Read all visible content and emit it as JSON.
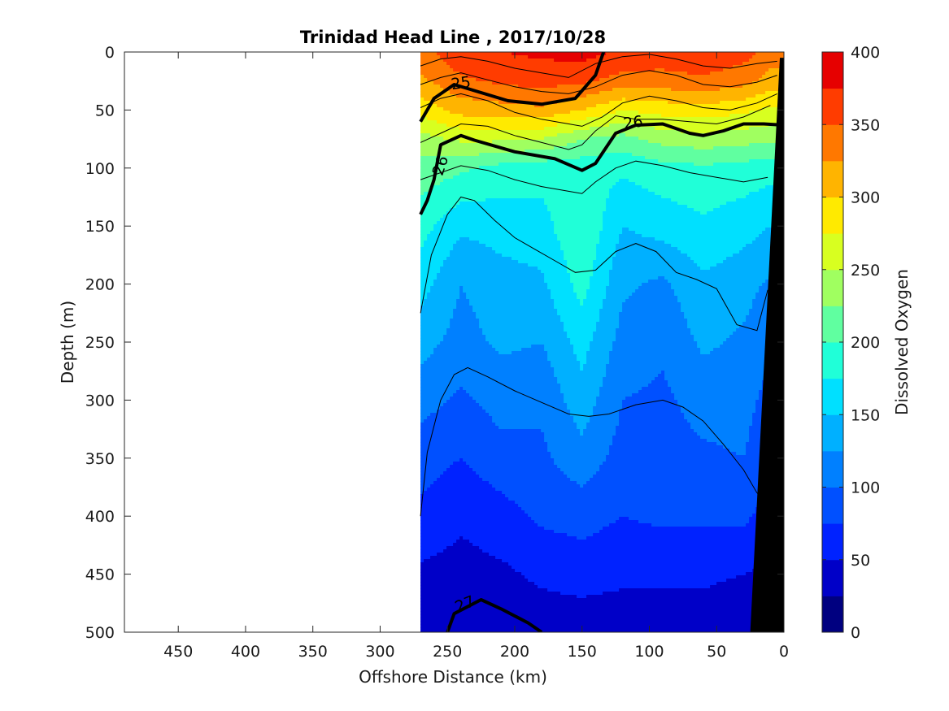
{
  "chart_data": {
    "type": "heatmap",
    "title": "Trinidad Head Line , 2017/10/28",
    "xlabel": "Offshore Distance (km)",
    "ylabel": "Depth (m)",
    "xlim": [
      490,
      0
    ],
    "ylim": [
      500,
      0
    ],
    "x_reversed": true,
    "y_reversed": true,
    "x_ticks": [
      450,
      400,
      350,
      300,
      250,
      200,
      150,
      100,
      50,
      0
    ],
    "y_ticks": [
      0,
      50,
      100,
      150,
      200,
      250,
      300,
      350,
      400,
      450,
      500
    ],
    "colorbar": {
      "label": "Dissolved Oxygen",
      "range": [
        0,
        400
      ],
      "ticks": [
        0,
        50,
        100,
        150,
        200,
        250,
        300,
        350,
        400
      ],
      "levels": [
        0,
        25,
        50,
        75,
        100,
        125,
        150,
        175,
        200,
        225,
        250,
        275,
        300,
        325,
        350,
        375,
        400
      ],
      "colormap": "jet",
      "colors": [
        "#000080",
        "#0000c8",
        "#0022ff",
        "#0050ff",
        "#0080ff",
        "#00b0ff",
        "#00e0ff",
        "#20ffd8",
        "#60ffa0",
        "#a0ff60",
        "#d8ff20",
        "#ffea00",
        "#ffb400",
        "#ff7800",
        "#ff3c00",
        "#e60000",
        "#a80000"
      ]
    },
    "data_extent_x": [
      270,
      0
    ],
    "oxygen_field": {
      "x_km": [
        270,
        240,
        210,
        180,
        150,
        120,
        90,
        60,
        30,
        10
      ],
      "depth_m": [
        0,
        25,
        50,
        75,
        100,
        150,
        200,
        250,
        300,
        350,
        400,
        450,
        500
      ],
      "values": [
        [
          340,
          370,
          375,
          380,
          385,
          370,
          365,
          370,
          360,
          340
        ],
        [
          320,
          345,
          355,
          360,
          355,
          340,
          340,
          345,
          335,
          315
        ],
        [
          285,
          310,
          315,
          320,
          300,
          275,
          285,
          290,
          280,
          270
        ],
        [
          240,
          255,
          255,
          250,
          225,
          215,
          235,
          240,
          235,
          230
        ],
        [
          215,
          205,
          190,
          185,
          185,
          180,
          190,
          195,
          190,
          185
        ],
        [
          185,
          155,
          160,
          165,
          200,
          150,
          160,
          170,
          160,
          150
        ],
        [
          160,
          125,
          140,
          145,
          185,
          130,
          120,
          145,
          135,
          120
        ],
        [
          135,
          115,
          130,
          125,
          160,
          115,
          105,
          130,
          120,
          105
        ],
        [
          110,
          95,
          110,
          105,
          140,
          100,
          95,
          110,
          110,
          90
        ],
        [
          85,
          75,
          90,
          95,
          115,
          90,
          90,
          95,
          100,
          80
        ],
        [
          70,
          55,
          65,
          80,
          85,
          75,
          80,
          80,
          80,
          65
        ],
        [
          45,
          40,
          45,
          55,
          60,
          55,
          55,
          55,
          50,
          45
        ],
        [
          25,
          25,
          30,
          35,
          35,
          35,
          35,
          35,
          30,
          25
        ]
      ]
    },
    "bathymetry": {
      "x_km": [
        3,
        0,
        0,
        25
      ],
      "depth_m": [
        5,
        5,
        500,
        500
      ]
    },
    "isopycnals": [
      {
        "sigma_theta": "25",
        "x_km": [
          270,
          260,
          245,
          225,
          205,
          180,
          155,
          140,
          134
        ],
        "depth_m": [
          60,
          40,
          28,
          35,
          42,
          45,
          40,
          20,
          0
        ]
      },
      {
        "sigma_theta": "26",
        "x_km": [
          270,
          265,
          260,
          255,
          240,
          230,
          200,
          170,
          150,
          140,
          125,
          110,
          90,
          70,
          60,
          45,
          30,
          15,
          0
        ],
        "depth_m": [
          140,
          128,
          110,
          80,
          72,
          76,
          86,
          92,
          102,
          96,
          70,
          63,
          62,
          70,
          72,
          68,
          62,
          62,
          63
        ]
      },
      {
        "sigma_theta": "27",
        "x_km": [
          250,
          245,
          225,
          210,
          190,
          180
        ],
        "depth_m": [
          500,
          484,
          472,
          480,
          492,
          500
        ]
      }
    ],
    "contour_labels": [
      {
        "text": "25",
        "x_km": 240,
        "depth_m": 27
      },
      {
        "text": "26",
        "x_km": 112,
        "depth_m": 61
      },
      {
        "text": "26",
        "x_km": 255,
        "depth_m": 98
      },
      {
        "text": "27",
        "x_km": 237,
        "depth_m": 476
      }
    ],
    "thin_contours": [
      {
        "x_km": [
          270,
          255,
          240,
          220,
          200,
          180,
          160,
          140,
          120,
          100,
          80,
          60,
          40,
          20,
          5
        ],
        "depth_m": [
          12,
          6,
          4,
          8,
          14,
          18,
          22,
          10,
          4,
          2,
          6,
          12,
          14,
          10,
          8
        ]
      },
      {
        "x_km": [
          270,
          255,
          240,
          220,
          200,
          180,
          160,
          140,
          120,
          100,
          80,
          60,
          40,
          20,
          5
        ],
        "depth_m": [
          28,
          22,
          18,
          24,
          30,
          34,
          36,
          30,
          20,
          16,
          20,
          28,
          30,
          26,
          20
        ]
      },
      {
        "x_km": [
          270,
          255,
          240,
          220,
          200,
          180,
          160,
          150,
          135,
          120,
          100,
          80,
          60,
          40,
          20,
          5
        ],
        "depth_m": [
          48,
          40,
          36,
          42,
          52,
          58,
          62,
          64,
          56,
          44,
          38,
          42,
          48,
          50,
          44,
          36
        ]
      },
      {
        "x_km": [
          270,
          255,
          240,
          220,
          200,
          180,
          160,
          150,
          140,
          125,
          110,
          90,
          70,
          50,
          30,
          10
        ],
        "depth_m": [
          78,
          70,
          62,
          64,
          72,
          78,
          84,
          80,
          68,
          55,
          58,
          58,
          60,
          62,
          56,
          46
        ]
      },
      {
        "x_km": [
          270,
          255,
          240,
          220,
          200,
          180,
          160,
          150,
          140,
          125,
          110,
          90,
          70,
          50,
          30,
          12
        ],
        "depth_m": [
          110,
          104,
          98,
          102,
          110,
          116,
          120,
          122,
          112,
          100,
          94,
          98,
          104,
          108,
          112,
          108
        ]
      },
      {
        "x_km": [
          270,
          262,
          250,
          240,
          230,
          215,
          200,
          185,
          170,
          155,
          140,
          125,
          110,
          95,
          80,
          65,
          50,
          35,
          20,
          12
        ],
        "depth_m": [
          225,
          175,
          140,
          125,
          128,
          145,
          160,
          170,
          180,
          190,
          188,
          172,
          165,
          172,
          190,
          196,
          204,
          235,
          240,
          205
        ]
      },
      {
        "x_km": [
          270,
          265,
          255,
          245,
          235,
          220,
          200,
          180,
          160,
          145,
          130,
          110,
          90,
          75,
          60,
          45,
          30,
          20,
          10
        ],
        "depth_m": [
          400,
          345,
          300,
          278,
          272,
          280,
          292,
          302,
          312,
          314,
          312,
          304,
          300,
          306,
          318,
          338,
          360,
          380,
          390
        ]
      }
    ]
  }
}
